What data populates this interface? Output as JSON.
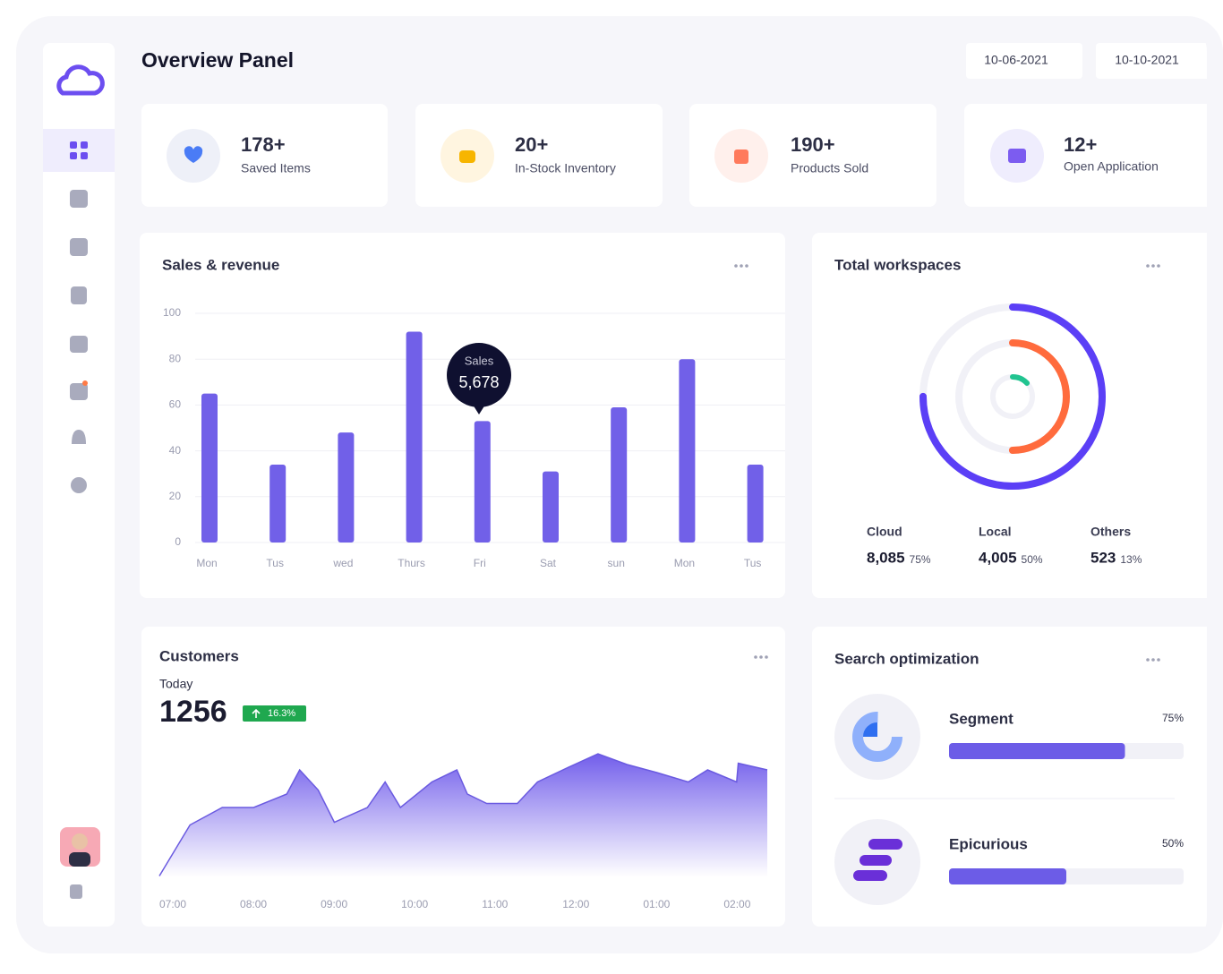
{
  "header": {
    "title": "Overview Panel",
    "dates": [
      "10-06-2021",
      "10-10-2021"
    ]
  },
  "stats": [
    {
      "value": "178+",
      "label": "Saved Items"
    },
    {
      "value": "20+",
      "label": "In-Stock Inventory"
    },
    {
      "value": "190+",
      "label": "Products Sold"
    },
    {
      "value": "12+",
      "label": "Open Application"
    }
  ],
  "sales": {
    "title": "Sales & revenue",
    "chart_data": {
      "type": "bar",
      "categories": [
        "Mon",
        "Tus",
        "wed",
        "Thurs",
        "Fri",
        "Sat",
        "sun",
        "Mon",
        "Tus"
      ],
      "values": [
        65,
        34,
        48,
        92,
        53,
        31,
        59,
        80,
        34
      ],
      "color": "#7160e8",
      "ylim": [
        0,
        100
      ],
      "yticks": [
        0,
        20,
        40,
        60,
        80,
        100
      ],
      "grid": true,
      "tooltip": {
        "label": "Sales",
        "value": "5,678"
      }
    }
  },
  "workspaces": {
    "title": "Total workspaces",
    "chart_data": {
      "type": "donut",
      "categories": [
        "Cloud",
        "Local",
        "Others"
      ],
      "totals": [
        "8,085",
        "4,005",
        "523"
      ],
      "values": [
        75,
        50,
        13
      ],
      "value_labels": [
        "75%",
        "50%",
        "13%"
      ],
      "colors": [
        "#5b3ff6",
        "#ff6b3d",
        "#21c490"
      ]
    }
  },
  "customers": {
    "title": "Customers",
    "period": "Today",
    "total": "1256",
    "change": "16.3%",
    "chart_data": {
      "type": "area",
      "color": "#6a5ae0",
      "x": [
        0,
        0.38,
        0.78,
        1.17,
        1.58,
        1.74,
        1.97,
        2.17,
        2.58,
        2.8,
        2.99,
        3.38,
        3.69,
        3.82,
        4.06,
        4.44,
        4.69,
        5.04,
        5.44,
        5.8,
        6.17,
        6.56,
        6.8,
        7.16,
        7.18,
        7.54
      ],
      "values": [
        1,
        39,
        52,
        52,
        62,
        80,
        65,
        41,
        52,
        71,
        52,
        71,
        80,
        62,
        55,
        55,
        71,
        81,
        92,
        84,
        78,
        71,
        80,
        71,
        85,
        80
      ],
      "xlim": [
        0,
        7.54
      ],
      "ylim": [
        0,
        100
      ],
      "xticks": [
        {
          "value": 0,
          "label": "07:00"
        },
        {
          "value": 1,
          "label": "08:00"
        },
        {
          "value": 2,
          "label": "09:00"
        },
        {
          "value": 3,
          "label": "10:00"
        },
        {
          "value": 4,
          "label": "11:00"
        },
        {
          "value": 5,
          "label": "12:00"
        },
        {
          "value": 6,
          "label": "01:00"
        },
        {
          "value": 7,
          "label": "02:00"
        }
      ]
    }
  },
  "search": {
    "title": "Search optimization",
    "chart_data": {
      "type": "progress",
      "categories": [
        "Segment",
        "Epicurious"
      ],
      "values": [
        75,
        50
      ],
      "value_labels": [
        "75%",
        "50%"
      ],
      "xlim": [
        0,
        100
      ],
      "color": "#6c5ce7"
    }
  }
}
